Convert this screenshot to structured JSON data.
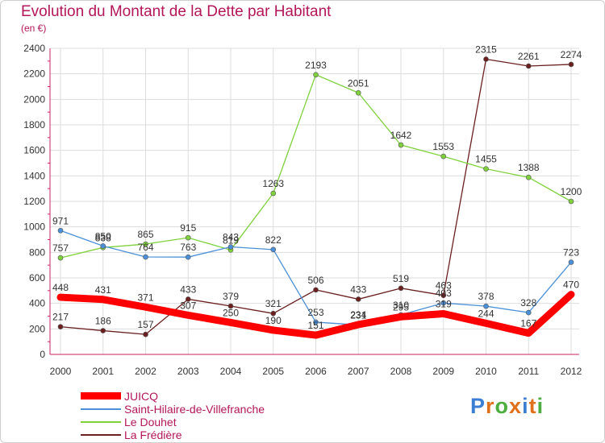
{
  "chart_data": {
    "type": "line",
    "title": "Evolution du Montant de la Dette par Habitant",
    "subtitle": "(en €)",
    "categories": [
      "2000",
      "2001",
      "2002",
      "2003",
      "2004",
      "2005",
      "2006",
      "2007",
      "2008",
      "2009",
      "2010",
      "2011",
      "2012"
    ],
    "yticks": [
      "0",
      "200",
      "400",
      "600",
      "800",
      "1000",
      "1200",
      "1400",
      "1600",
      "1800",
      "2000",
      "2200",
      "2400"
    ],
    "ylim": [
      0,
      2400
    ],
    "grid": true,
    "legend_position": "bottom-left",
    "series": [
      {
        "name": "JUICQ",
        "color": "#ff0000",
        "values": [
          448,
          431,
          371,
          307,
          250,
          190,
          151,
          234,
          295,
          319,
          244,
          167,
          470
        ]
      },
      {
        "name": "Saint-Hilaire-de-Villefranche",
        "color": "#4a90d9",
        "values": [
          971,
          850,
          764,
          763,
          843,
          822,
          253,
          231,
          310,
          403,
          378,
          328,
          723
        ]
      },
      {
        "name": "Le Douhet",
        "color": "#7fd23c",
        "values": [
          757,
          838,
          865,
          915,
          819,
          1263,
          2193,
          2051,
          1642,
          1553,
          1455,
          1388,
          1200
        ]
      },
      {
        "name": "La Frédière",
        "color": "#6b1f1f",
        "values": [
          217,
          186,
          157,
          433,
          379,
          321,
          506,
          433,
          519,
          463,
          2315,
          2261,
          2274
        ]
      }
    ]
  },
  "logo": {
    "letters": [
      "P",
      "r",
      "o",
      "x",
      "i",
      "t",
      "i"
    ],
    "colors": [
      "#3b7fd4",
      "#e1701a",
      "#4cae3e",
      "#e1701a",
      "#3b7fd4",
      "#e1701a",
      "#4cae3e"
    ]
  }
}
